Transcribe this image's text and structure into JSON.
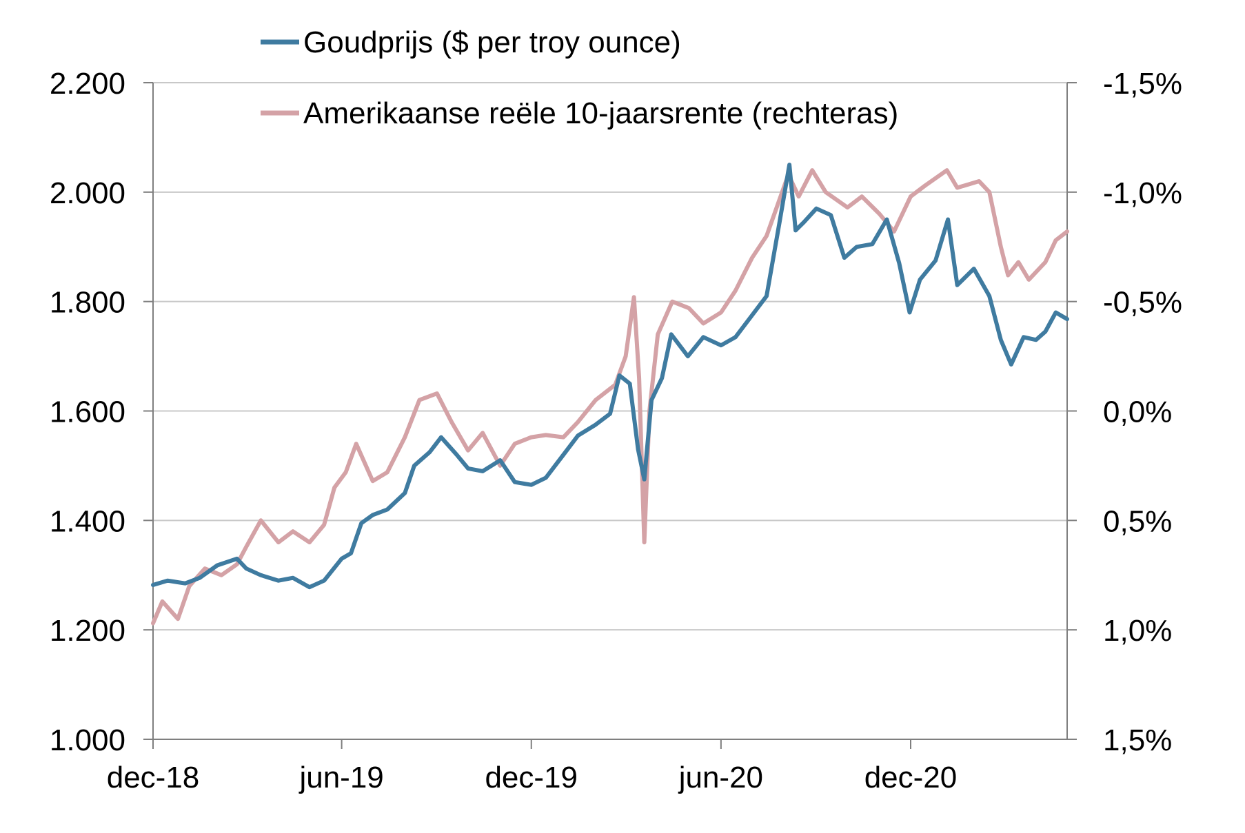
{
  "chart_data": {
    "type": "line",
    "x_ticks": [
      "dec-18",
      "jun-19",
      "dec-19",
      "jun-20",
      "dec-20"
    ],
    "y_left": {
      "range": [
        1000,
        2200
      ],
      "ticks": [
        1000,
        1200,
        1400,
        1600,
        1800,
        2000,
        2200
      ],
      "tick_labels": [
        "1.000",
        "1.200",
        "1.400",
        "1.600",
        "1.800",
        "2.000",
        "2.200"
      ]
    },
    "y_right": {
      "range": [
        1.5,
        -1.5
      ],
      "inverted": true,
      "ticks": [
        1.5,
        1.0,
        0.5,
        0.0,
        -0.5,
        -1.0,
        -1.5
      ],
      "tick_labels": [
        "1,5%",
        "1,0%",
        "0,5%",
        "0,0%",
        "-0,5%",
        "-1,0%",
        "-1,5%"
      ]
    },
    "grid": "horizontal",
    "legend_position": "top",
    "series": [
      {
        "name": "Goudprijs ($ per troy ounce)",
        "axis": "left",
        "color": "#3f7ba0",
        "points": [
          [
            "2018-12-01",
            1282
          ],
          [
            "2018-12-15",
            1290
          ],
          [
            "2019-01-01",
            1285
          ],
          [
            "2019-01-15",
            1295
          ],
          [
            "2019-02-01",
            1318
          ],
          [
            "2019-02-20",
            1330
          ],
          [
            "2019-03-01",
            1312
          ],
          [
            "2019-03-15",
            1300
          ],
          [
            "2019-04-01",
            1290
          ],
          [
            "2019-04-15",
            1295
          ],
          [
            "2019-05-01",
            1278
          ],
          [
            "2019-05-15",
            1290
          ],
          [
            "2019-06-01",
            1330
          ],
          [
            "2019-06-10",
            1340
          ],
          [
            "2019-06-20",
            1395
          ],
          [
            "2019-07-01",
            1410
          ],
          [
            "2019-07-15",
            1420
          ],
          [
            "2019-08-01",
            1450
          ],
          [
            "2019-08-10",
            1500
          ],
          [
            "2019-08-25",
            1525
          ],
          [
            "2019-09-05",
            1552
          ],
          [
            "2019-09-20",
            1520
          ],
          [
            "2019-10-01",
            1495
          ],
          [
            "2019-10-15",
            1490
          ],
          [
            "2019-11-01",
            1510
          ],
          [
            "2019-11-15",
            1470
          ],
          [
            "2019-12-01",
            1465
          ],
          [
            "2019-12-15",
            1478
          ],
          [
            "2020-01-01",
            1520
          ],
          [
            "2020-01-15",
            1555
          ],
          [
            "2020-02-01",
            1575
          ],
          [
            "2020-02-15",
            1595
          ],
          [
            "2020-02-24",
            1665
          ],
          [
            "2020-03-05",
            1650
          ],
          [
            "2020-03-13",
            1530
          ],
          [
            "2020-03-19",
            1475
          ],
          [
            "2020-03-26",
            1620
          ],
          [
            "2020-04-05",
            1660
          ],
          [
            "2020-04-14",
            1740
          ],
          [
            "2020-04-30",
            1700
          ],
          [
            "2020-05-15",
            1735
          ],
          [
            "2020-06-01",
            1720
          ],
          [
            "2020-06-15",
            1735
          ],
          [
            "2020-07-01",
            1775
          ],
          [
            "2020-07-15",
            1810
          ],
          [
            "2020-07-27",
            1940
          ],
          [
            "2020-08-06",
            2050
          ],
          [
            "2020-08-12",
            1930
          ],
          [
            "2020-08-20",
            1945
          ],
          [
            "2020-09-01",
            1970
          ],
          [
            "2020-09-15",
            1958
          ],
          [
            "2020-09-28",
            1880
          ],
          [
            "2020-10-10",
            1900
          ],
          [
            "2020-10-25",
            1905
          ],
          [
            "2020-11-08",
            1950
          ],
          [
            "2020-11-20",
            1870
          ],
          [
            "2020-11-30",
            1780
          ],
          [
            "2020-12-10",
            1840
          ],
          [
            "2020-12-25",
            1875
          ],
          [
            "2021-01-06",
            1950
          ],
          [
            "2021-01-15",
            1830
          ],
          [
            "2021-01-31",
            1860
          ],
          [
            "2021-02-15",
            1810
          ],
          [
            "2021-02-26",
            1730
          ],
          [
            "2021-03-08",
            1685
          ],
          [
            "2021-03-20",
            1735
          ],
          [
            "2021-04-01",
            1730
          ],
          [
            "2021-04-10",
            1745
          ],
          [
            "2021-04-20",
            1780
          ],
          [
            "2021-05-01",
            1768
          ]
        ]
      },
      {
        "name": "Amerikaanse reële 10-jaarsrente (rechteras)",
        "axis": "right",
        "color": "#d4a2a6",
        "points": [
          [
            "2018-12-01",
            0.97
          ],
          [
            "2018-12-10",
            0.87
          ],
          [
            "2018-12-25",
            0.95
          ],
          [
            "2019-01-05",
            0.8
          ],
          [
            "2019-01-20",
            0.72
          ],
          [
            "2019-02-05",
            0.75
          ],
          [
            "2019-02-20",
            0.7
          ],
          [
            "2019-03-01",
            0.62
          ],
          [
            "2019-03-15",
            0.5
          ],
          [
            "2019-04-01",
            0.6
          ],
          [
            "2019-04-15",
            0.55
          ],
          [
            "2019-05-01",
            0.6
          ],
          [
            "2019-05-15",
            0.52
          ],
          [
            "2019-05-25",
            0.35
          ],
          [
            "2019-06-05",
            0.28
          ],
          [
            "2019-06-15",
            0.15
          ],
          [
            "2019-07-01",
            0.32
          ],
          [
            "2019-07-15",
            0.28
          ],
          [
            "2019-08-01",
            0.12
          ],
          [
            "2019-08-15",
            -0.05
          ],
          [
            "2019-09-01",
            -0.08
          ],
          [
            "2019-09-15",
            0.05
          ],
          [
            "2019-10-01",
            0.18
          ],
          [
            "2019-10-15",
            0.1
          ],
          [
            "2019-11-01",
            0.25
          ],
          [
            "2019-11-15",
            0.15
          ],
          [
            "2019-12-01",
            0.12
          ],
          [
            "2019-12-15",
            0.11
          ],
          [
            "2020-01-01",
            0.12
          ],
          [
            "2020-01-15",
            0.05
          ],
          [
            "2020-02-01",
            -0.05
          ],
          [
            "2020-02-20",
            -0.12
          ],
          [
            "2020-03-01",
            -0.25
          ],
          [
            "2020-03-09",
            -0.52
          ],
          [
            "2020-03-14",
            -0.15
          ],
          [
            "2020-03-19",
            0.6
          ],
          [
            "2020-03-24",
            0.0
          ],
          [
            "2020-04-01",
            -0.35
          ],
          [
            "2020-04-15",
            -0.5
          ],
          [
            "2020-05-01",
            -0.47
          ],
          [
            "2020-05-15",
            -0.4
          ],
          [
            "2020-06-01",
            -0.45
          ],
          [
            "2020-06-15",
            -0.55
          ],
          [
            "2020-07-01",
            -0.7
          ],
          [
            "2020-07-15",
            -0.8
          ],
          [
            "2020-08-05",
            -1.08
          ],
          [
            "2020-08-15",
            -0.98
          ],
          [
            "2020-08-28",
            -1.1
          ],
          [
            "2020-09-10",
            -1.0
          ],
          [
            "2020-10-01",
            -0.93
          ],
          [
            "2020-10-15",
            -0.98
          ],
          [
            "2020-11-01",
            -0.9
          ],
          [
            "2020-11-15",
            -0.82
          ],
          [
            "2020-12-01",
            -0.98
          ],
          [
            "2020-12-15",
            -1.03
          ],
          [
            "2021-01-05",
            -1.1
          ],
          [
            "2021-01-15",
            -1.02
          ],
          [
            "2021-02-05",
            -1.05
          ],
          [
            "2021-02-15",
            -1.0
          ],
          [
            "2021-02-26",
            -0.75
          ],
          [
            "2021-03-05",
            -0.62
          ],
          [
            "2021-03-15",
            -0.68
          ],
          [
            "2021-03-25",
            -0.6
          ],
          [
            "2021-04-10",
            -0.68
          ],
          [
            "2021-04-20",
            -0.78
          ],
          [
            "2021-05-01",
            -0.82
          ]
        ]
      }
    ]
  }
}
